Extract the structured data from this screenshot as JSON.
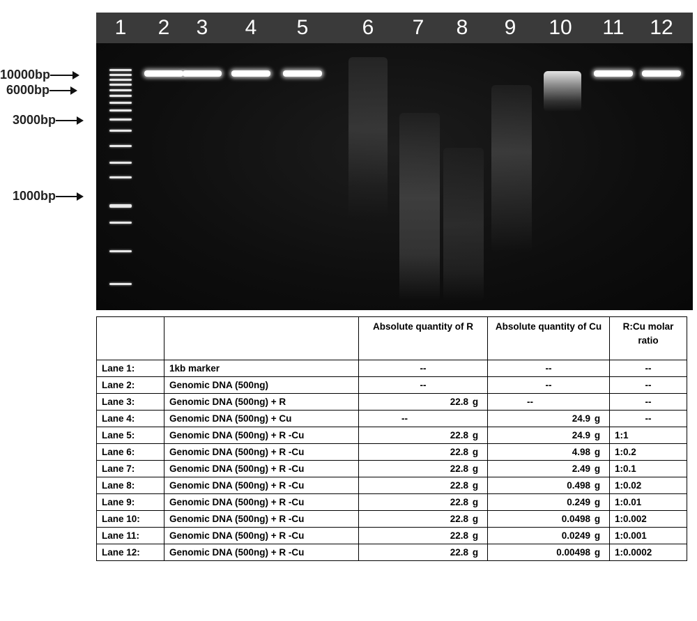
{
  "gel": {
    "lane_numbers": [
      "1",
      "2",
      "3",
      "4",
      "5",
      "6",
      "7",
      "8",
      "9",
      "10",
      "11",
      "12"
    ],
    "size_markers": [
      "10000bp",
      "6000bp",
      "3000bp",
      "1000bp"
    ]
  },
  "table": {
    "headers": [
      "",
      "",
      "Absolute quantity of R",
      "Absolute quantity of Cu",
      "R:Cu molar ratio"
    ],
    "rows": [
      {
        "lane": "Lane 1:",
        "sample": "1kb marker",
        "r": "--",
        "r_unit": "",
        "cu": "--",
        "cu_unit": "",
        "ratio": "--"
      },
      {
        "lane": "Lane 2:",
        "sample": "Genomic DNA (500ng)",
        "r": "--",
        "r_unit": "",
        "cu": "--",
        "cu_unit": "",
        "ratio": "--"
      },
      {
        "lane": "Lane 3:",
        "sample": "Genomic DNA (500ng) + R",
        "r": "22.8",
        "r_unit": "g",
        "cu": "--",
        "cu_unit": "",
        "ratio": "--"
      },
      {
        "lane": "Lane 4:",
        "sample": "Genomic DNA (500ng) + Cu",
        "r": "--",
        "r_unit": "",
        "cu": "24.9",
        "cu_unit": "g",
        "ratio": "--"
      },
      {
        "lane": "Lane 5:",
        "sample": "Genomic DNA (500ng) + R -Cu",
        "r": "22.8",
        "r_unit": "g",
        "cu": "24.9",
        "cu_unit": "g",
        "ratio": "1:1"
      },
      {
        "lane": "Lane 6:",
        "sample": "Genomic DNA (500ng) + R -Cu",
        "r": "22.8",
        "r_unit": "g",
        "cu": "4.98",
        "cu_unit": "g",
        "ratio": "1:0.2"
      },
      {
        "lane": "Lane 7:",
        "sample": "Genomic DNA (500ng) + R -Cu",
        "r": "22.8",
        "r_unit": "g",
        "cu": "2.49",
        "cu_unit": "g",
        "ratio": "1:0.1"
      },
      {
        "lane": "Lane 8:",
        "sample": "Genomic DNA (500ng) + R -Cu",
        "r": "22.8",
        "r_unit": "g",
        "cu": "0.498",
        "cu_unit": "g",
        "ratio": "1:0.02"
      },
      {
        "lane": "Lane 9:",
        "sample": "Genomic DNA (500ng) + R -Cu",
        "r": "22.8",
        "r_unit": "g",
        "cu": "0.249",
        "cu_unit": "g",
        "ratio": "1:0.01"
      },
      {
        "lane": "Lane 10:",
        "sample": "Genomic DNA (500ng) + R -Cu",
        "r": "22.8",
        "r_unit": "g",
        "cu": "0.0498",
        "cu_unit": "g",
        "ratio": "1:0.002"
      },
      {
        "lane": "Lane 11:",
        "sample": "Genomic DNA (500ng) + R -Cu",
        "r": "22.8",
        "r_unit": "g",
        "cu": "0.0249",
        "cu_unit": "g",
        "ratio": "1:0.001"
      },
      {
        "lane": "Lane 12:",
        "sample": "Genomic DNA (500ng) + R -Cu",
        "r": "22.8",
        "r_unit": "g",
        "cu": "0.00498",
        "cu_unit": "g",
        "ratio": "1:0.0002"
      }
    ]
  }
}
